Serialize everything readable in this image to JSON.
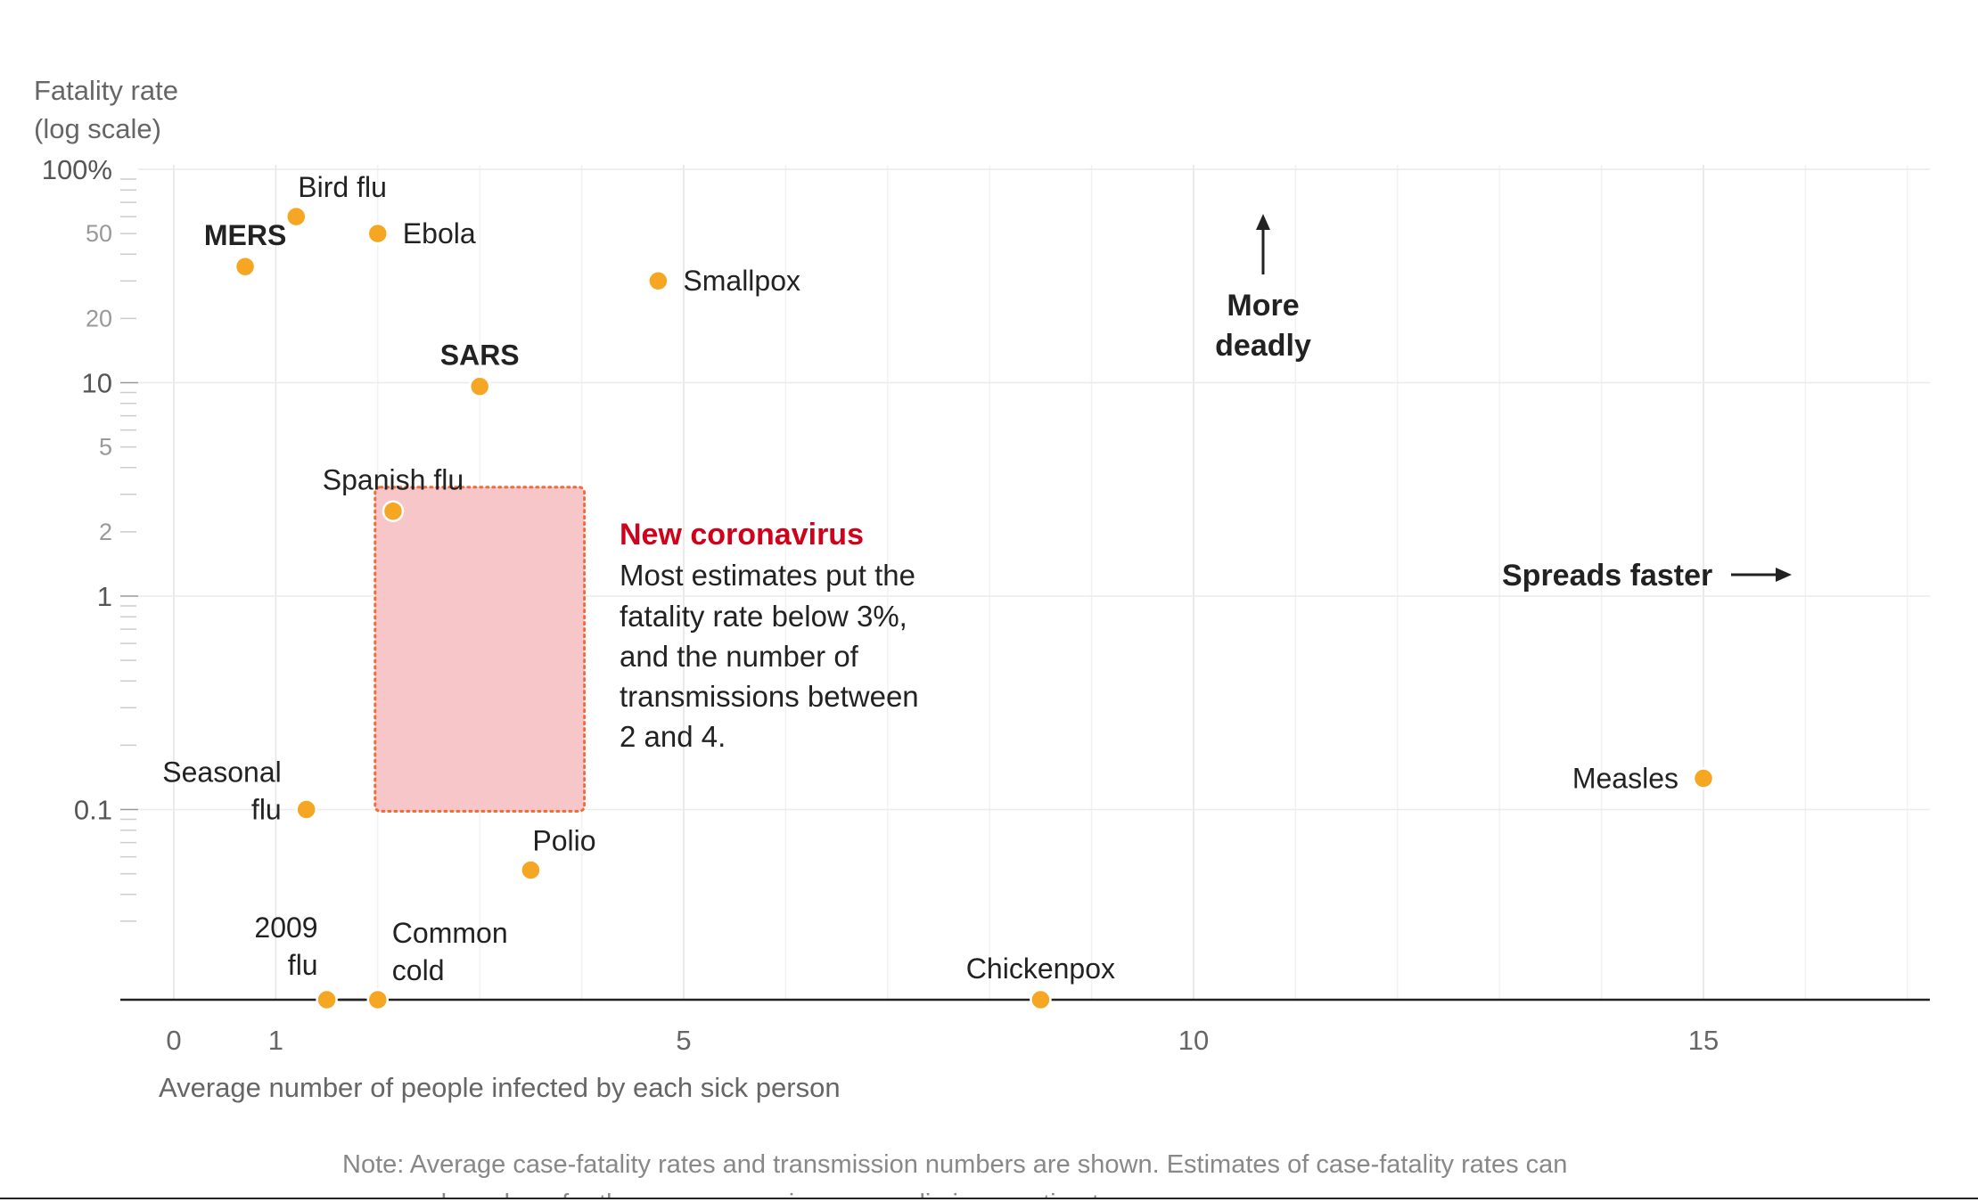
{
  "chart_data": {
    "type": "scatter",
    "title": "",
    "ylabel": [
      "Fatality rate",
      "(log scale)"
    ],
    "xlabel": "Average number of people infected by each sick person",
    "y_scale": "log",
    "ylim": [
      0.005,
      100
    ],
    "xlim": [
      0,
      17
    ],
    "x_ticks": [
      {
        "value": 0,
        "label": "0"
      },
      {
        "value": 1,
        "label": "1"
      },
      {
        "value": 5,
        "label": "5"
      },
      {
        "value": 10,
        "label": "10"
      },
      {
        "value": 15,
        "label": "15"
      }
    ],
    "y_ticks_major": [
      {
        "value": 100,
        "label": "100%"
      },
      {
        "value": 10,
        "label": "10"
      },
      {
        "value": 1,
        "label": "1"
      },
      {
        "value": 0.1,
        "label": "0.1"
      }
    ],
    "y_ticks_minor": [
      {
        "value": 50,
        "label": "50"
      },
      {
        "value": 20,
        "label": "20"
      },
      {
        "value": 5,
        "label": "5"
      },
      {
        "value": 2,
        "label": "2"
      }
    ],
    "grid": true,
    "points": [
      {
        "name": "MERS",
        "x": 0.7,
        "y": 35,
        "bold": true,
        "label_pos": "above"
      },
      {
        "name": "Bird flu",
        "x": 1.2,
        "y": 60,
        "bold": false,
        "label_pos": "above-right"
      },
      {
        "name": "Ebola",
        "x": 2.0,
        "y": 50,
        "bold": false,
        "label_pos": "right"
      },
      {
        "name": "Smallpox",
        "x": 4.75,
        "y": 30,
        "bold": false,
        "label_pos": "right"
      },
      {
        "name": "SARS",
        "x": 3.0,
        "y": 9.6,
        "bold": true,
        "label_pos": "above"
      },
      {
        "name": "Spanish flu",
        "x": 2.15,
        "y": 2.5,
        "bold": false,
        "label_pos": "above"
      },
      {
        "name": [
          "Seasonal",
          "flu"
        ],
        "x": 1.3,
        "y": 0.1,
        "bold": false,
        "label_pos": "left"
      },
      {
        "name": "Polio",
        "x": 3.5,
        "y": 0.052,
        "bold": false,
        "label_pos": "above-right"
      },
      {
        "name": [
          "2009",
          "flu"
        ],
        "x": 1.5,
        "y": 0.005,
        "bold": false,
        "label_pos": "above-left"
      },
      {
        "name": [
          "Common",
          "cold"
        ],
        "x": 2.0,
        "y": 0.005,
        "bold": false,
        "label_pos": "above-right"
      },
      {
        "name": "Chickenpox",
        "x": 8.5,
        "y": 0.005,
        "bold": false,
        "label_pos": "above"
      },
      {
        "name": "Measles",
        "x": 15.0,
        "y": 0.14,
        "bold": false,
        "label_pos": "left"
      }
    ],
    "highlight_region": {
      "x": [
        2,
        4
      ],
      "y": [
        0.1,
        3
      ]
    },
    "annotation": {
      "title": "New coronavirus",
      "lines": [
        "Most estimates put the",
        "fatality rate below 3%,",
        "and the number of",
        "transmissions between",
        "2 and 4."
      ]
    },
    "direction_labels": {
      "up": [
        "More",
        "deadly"
      ],
      "right": "Spreads faster"
    },
    "note": [
      "Note: Average case-fatality rates and transmission numbers are shown. Estimates of case-fatality rates can",
      "vary, and numbers for the new coronavirus are preliminary estimates."
    ],
    "colors": {
      "point": "#f5a623",
      "region_fill": "#f7c6c9",
      "region_border": "#f26b3a",
      "annotation_title": "#d0021b",
      "grid": "#ebebeb",
      "baseline": "#222222"
    }
  }
}
